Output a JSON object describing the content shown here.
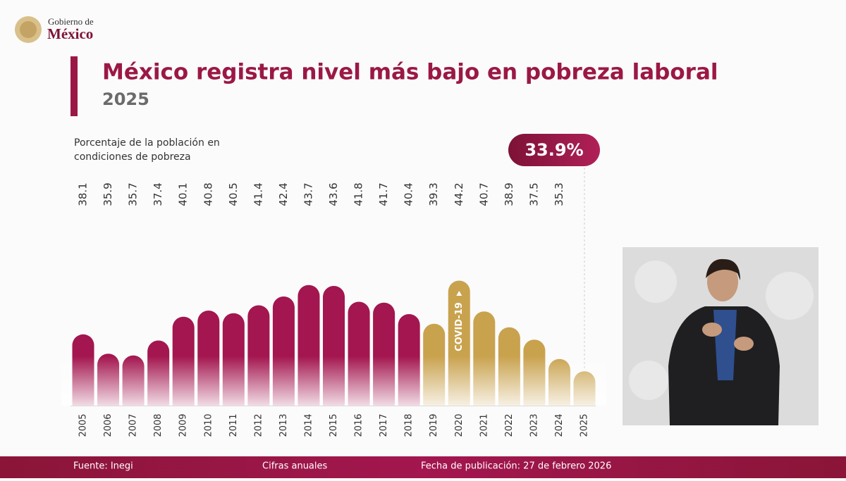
{
  "header": {
    "logo_top": "Gobierno de",
    "logo_bottom": "México"
  },
  "chart_data": {
    "type": "bar",
    "title": "México registra nivel más bajo en pobreza laboral",
    "subtitle": "2025",
    "y_label_line1": "Porcentaje de la población en",
    "y_label_line2": "condiciones de pobreza",
    "annotation": "COVID-19",
    "categories": [
      "2005",
      "2006",
      "2007",
      "2008",
      "2009",
      "2010",
      "2011",
      "2012",
      "2013",
      "2014",
      "2015",
      "2016",
      "2017",
      "2018",
      "2019",
      "2020",
      "2021",
      "2022",
      "2023",
      "2024",
      "2025"
    ],
    "values": [
      38.1,
      35.9,
      35.7,
      37.4,
      40.1,
      40.8,
      40.5,
      41.4,
      42.4,
      43.7,
      43.6,
      41.8,
      41.7,
      40.4,
      39.3,
      44.2,
      40.7,
      38.9,
      37.5,
      35.3,
      33.9
    ],
    "value_labels": [
      "38.1",
      "35.9",
      "35.7",
      "37.4",
      "40.1",
      "40.8",
      "40.5",
      "41.4",
      "42.4",
      "43.7",
      "43.6",
      "41.8",
      "41.7",
      "40.4",
      "39.3",
      "44.2",
      "40.7",
      "38.9",
      "37.5",
      "35.3",
      "33.9%"
    ],
    "colors": [
      "#a3164f",
      "#a3164f",
      "#a3164f",
      "#a3164f",
      "#a3164f",
      "#a3164f",
      "#a3164f",
      "#a3164f",
      "#a3164f",
      "#a3164f",
      "#a3164f",
      "#a3164f",
      "#a3164f",
      "#a3164f",
      "#c9a24e",
      "#c9a24e",
      "#c9a24e",
      "#c9a24e",
      "#c9a24e",
      "#c9a24e",
      "#c9a24e"
    ],
    "ylim": [
      30,
      45
    ]
  },
  "footer": {
    "source": "Fuente: Inegi",
    "note": "Cifras anuales",
    "date": "Fecha de publicación: 27 de febrero 2026"
  }
}
